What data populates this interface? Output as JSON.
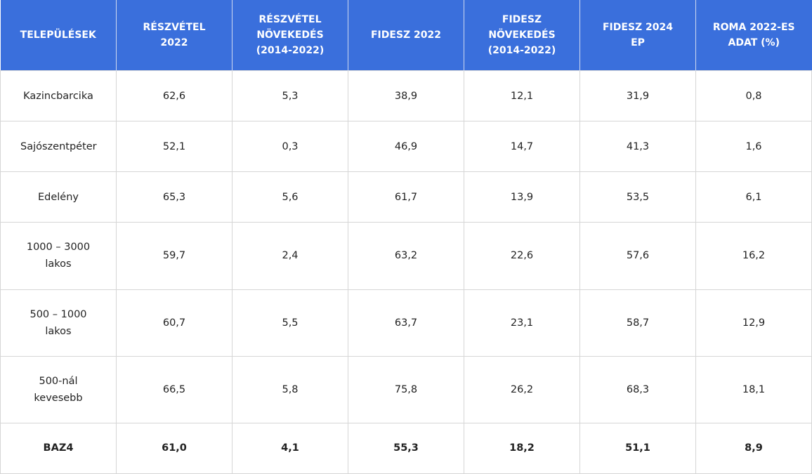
{
  "table": {
    "headers": [
      "TELEPÜLÉSEK",
      "RÉSZVÉTEL 2022",
      "RÉSZVÉTEL NÖVEKEDÉS (2014-2022)",
      "FIDESZ 2022",
      "FIDESZ NÖVEKEDÉS (2014-2022)",
      "FIDESZ 2024 EP",
      "ROMA 2022-ES ADAT (%)"
    ],
    "rows": [
      [
        "Kazincbarcika",
        "62,6",
        "5,3",
        "38,9",
        "12,1",
        "31,9",
        "0,8"
      ],
      [
        "Sajószentpéter",
        "52,1",
        "0,3",
        "46,9",
        "14,7",
        "41,3",
        "1,6"
      ],
      [
        "Edelény",
        "65,3",
        "5,6",
        "61,7",
        "13,9",
        "53,5",
        "6,1"
      ],
      [
        "1000 – 3000 lakos",
        "59,7",
        "2,4",
        "63,2",
        "22,6",
        "57,6",
        "16,2"
      ],
      [
        "500 – 1000 lakos",
        "60,7",
        "5,5",
        "63,7",
        "23,1",
        "58,7",
        "12,9"
      ],
      [
        "500-nál kevesebb",
        "66,5",
        "5,8",
        "75,8",
        "26,2",
        "68,3",
        "18,1"
      ],
      [
        "BAZ4",
        "61,0",
        "4,1",
        "55,3",
        "18,2",
        "51,1",
        "8,9"
      ]
    ]
  }
}
